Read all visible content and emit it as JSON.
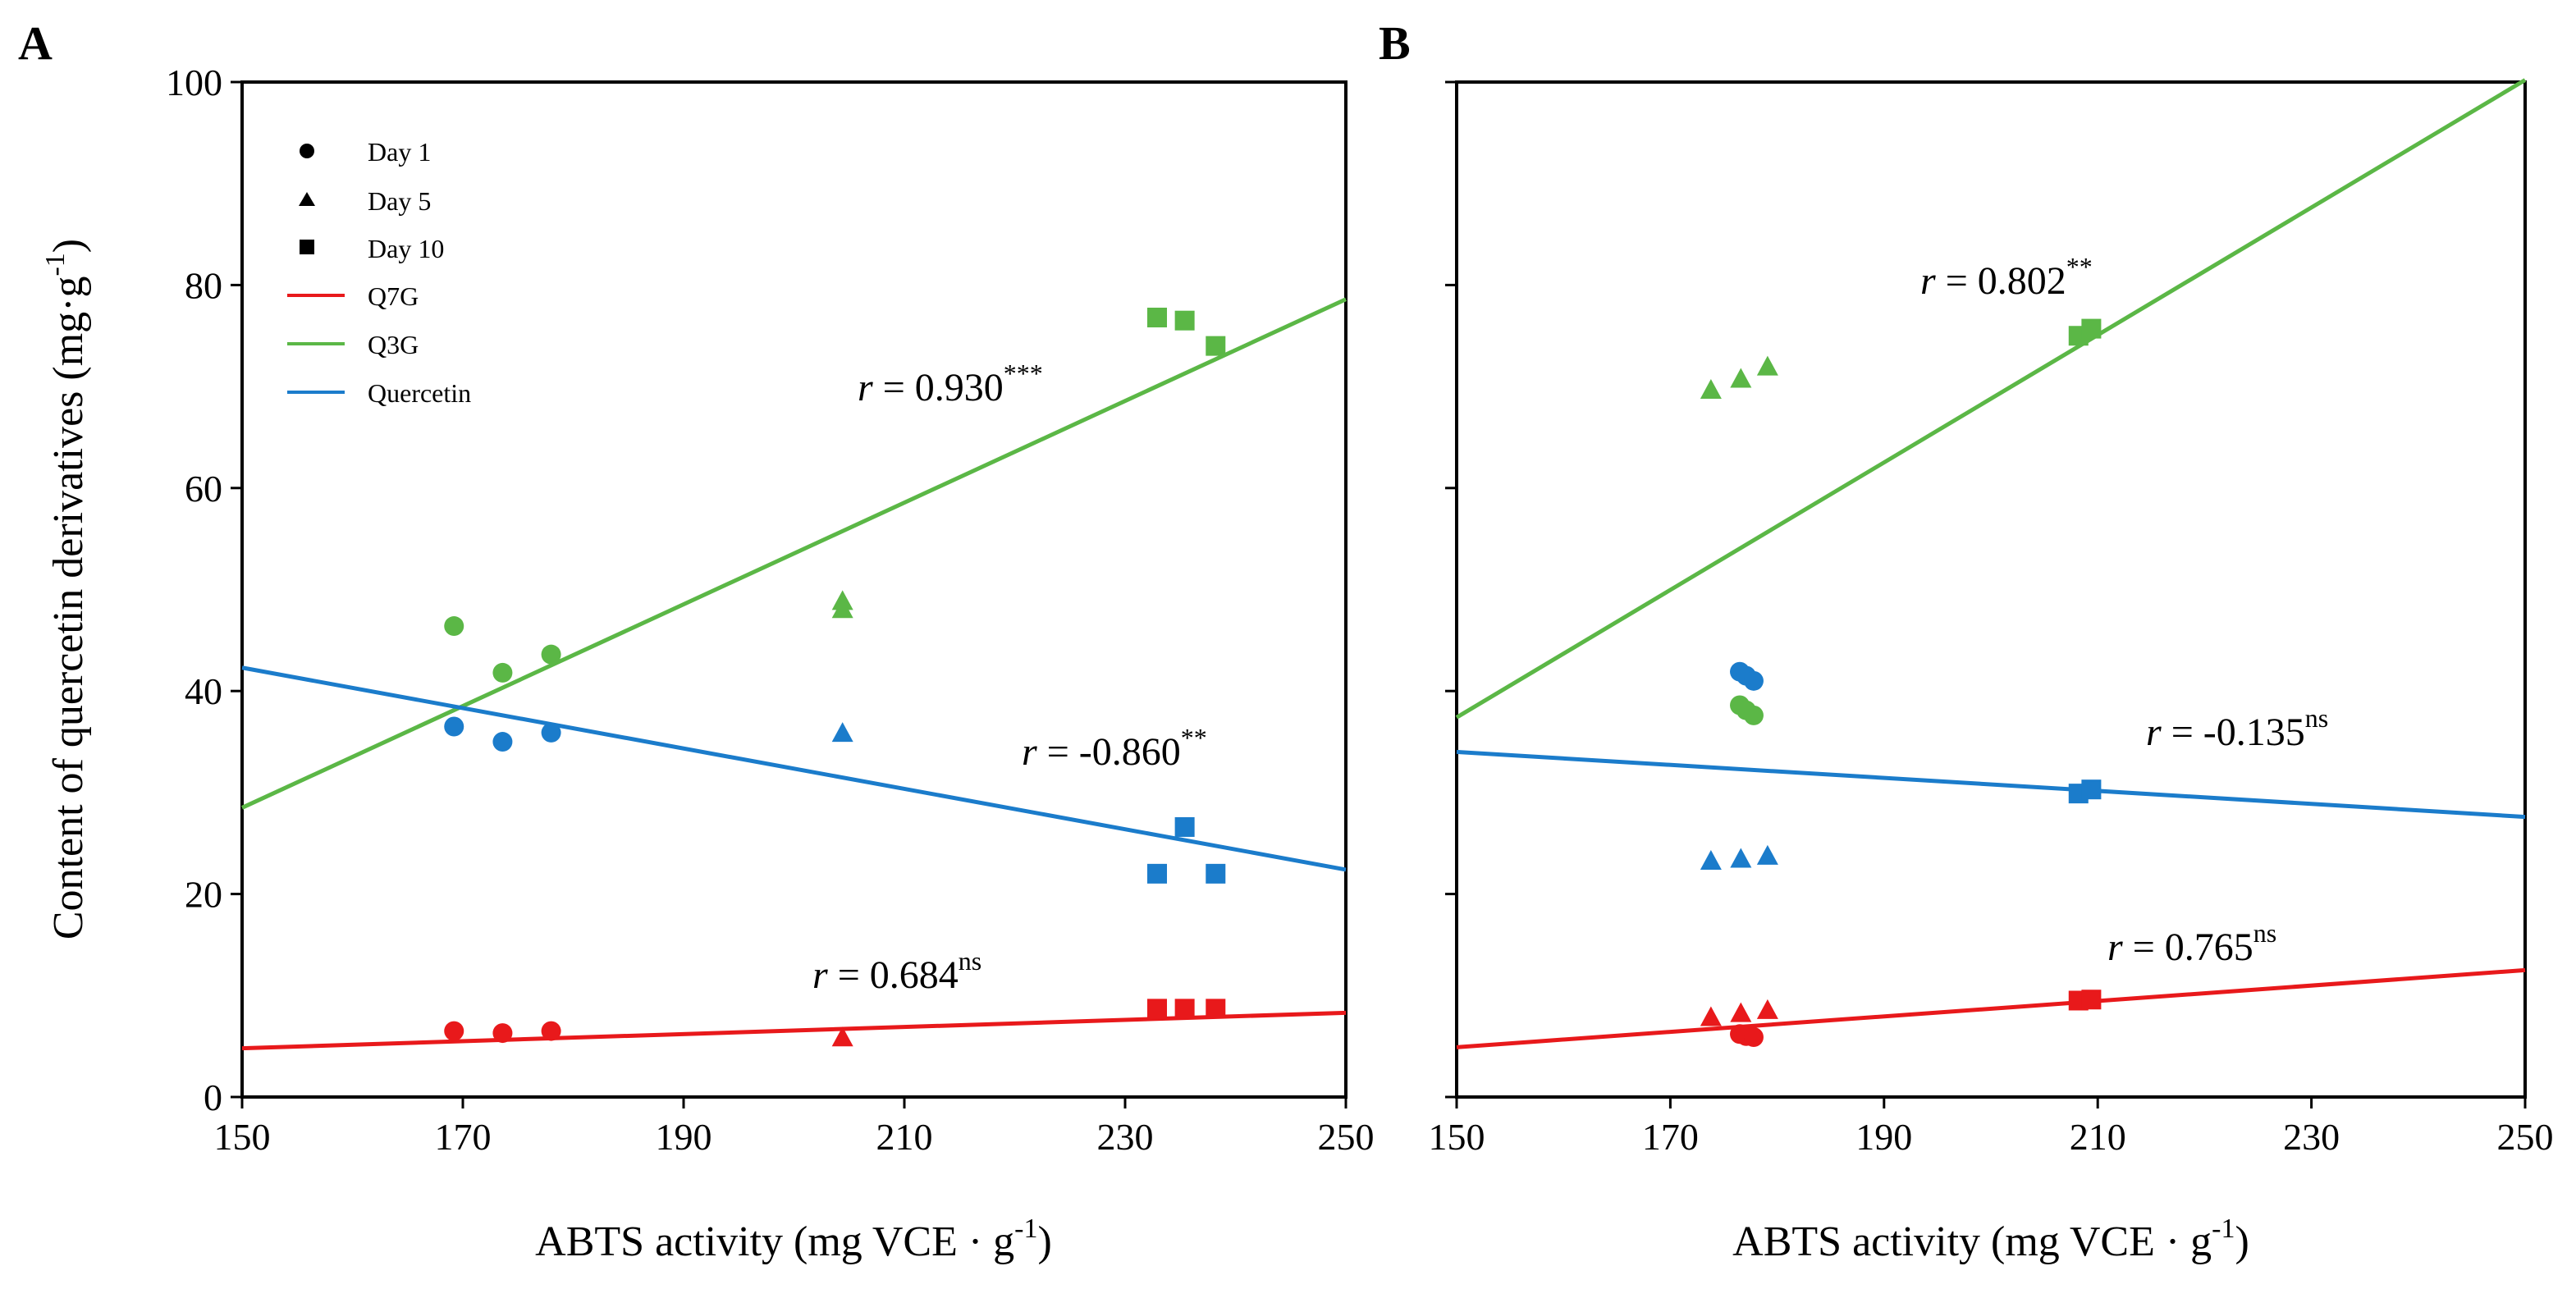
{
  "chart_data": {
    "type": "scatter",
    "ylabel_main": "Content of quercetin derivatives (mg·g",
    "ylabel_sup": "-1",
    "ylabel_close": ")",
    "xlabel_main": "ABTS activity (mg VCE · g",
    "xlabel_sup": "-1",
    "xlabel_close": ")",
    "xlim": [
      150,
      250
    ],
    "ylim": [
      0,
      100
    ],
    "xticks": [
      "150",
      "170",
      "190",
      "210",
      "230",
      "250"
    ],
    "yticks": [
      "0",
      "20",
      "40",
      "60",
      "80",
      "100"
    ],
    "legend": {
      "markers": [
        {
          "shape": "circle",
          "label": "Day 1"
        },
        {
          "shape": "triangle",
          "label": "Day 5"
        },
        {
          "shape": "square",
          "label": "Day 10"
        }
      ],
      "lines": [
        {
          "color": "#e8191b",
          "label": "Q7G"
        },
        {
          "color": "#5bb746",
          "label": "Q3G"
        },
        {
          "color": "#1b7ccb",
          "label": "Quercetin"
        }
      ]
    },
    "panels": [
      {
        "label": "A",
        "series": [
          {
            "name": "Q7G",
            "color": "#e8191b",
            "fit": {
              "y_at_150": 4.8,
              "y_at_250": 8.3
            },
            "r_prefix": "r",
            "r_value": " = 0.684",
            "r_sig": "ns",
            "points": [
              {
                "shape": "circle",
                "x": 169.2,
                "y": 6.5
              },
              {
                "shape": "circle",
                "x": 173.6,
                "y": 6.3
              },
              {
                "shape": "circle",
                "x": 178.0,
                "y": 6.5
              },
              {
                "shape": "triangle",
                "x": 204.4,
                "y": 5.8
              },
              {
                "shape": "square",
                "x": 232.9,
                "y": 8.7
              },
              {
                "shape": "square",
                "x": 235.4,
                "y": 8.7
              },
              {
                "shape": "square",
                "x": 238.2,
                "y": 8.7
              }
            ]
          },
          {
            "name": "Q3G",
            "color": "#5bb746",
            "fit": {
              "y_at_150": 28.5,
              "y_at_250": 78.6
            },
            "r_prefix": "r",
            "r_value": " = 0.930",
            "r_sig": "***",
            "points": [
              {
                "shape": "circle",
                "x": 169.2,
                "y": 46.4
              },
              {
                "shape": "circle",
                "x": 173.6,
                "y": 41.8
              },
              {
                "shape": "circle",
                "x": 178.0,
                "y": 43.6
              },
              {
                "shape": "triangle",
                "x": 204.4,
                "y": 48.8
              },
              {
                "shape": "triangle",
                "x": 204.4,
                "y": 48.0
              },
              {
                "shape": "square",
                "x": 232.9,
                "y": 76.8
              },
              {
                "shape": "square",
                "x": 235.4,
                "y": 76.5
              },
              {
                "shape": "square",
                "x": 238.2,
                "y": 74.0
              }
            ]
          },
          {
            "name": "Quercetin",
            "color": "#1b7ccb",
            "fit": {
              "y_at_150": 42.3,
              "y_at_250": 22.4
            },
            "r_prefix": "r",
            "r_value": " = -0.860",
            "r_sig": "**",
            "points": [
              {
                "shape": "circle",
                "x": 169.2,
                "y": 36.5
              },
              {
                "shape": "circle",
                "x": 173.6,
                "y": 35.0
              },
              {
                "shape": "circle",
                "x": 178.0,
                "y": 35.9
              },
              {
                "shape": "triangle",
                "x": 204.4,
                "y": 35.8
              },
              {
                "shape": "square",
                "x": 232.9,
                "y": 22.0
              },
              {
                "shape": "square",
                "x": 235.4,
                "y": 26.6
              },
              {
                "shape": "square",
                "x": 238.2,
                "y": 22.0
              }
            ]
          }
        ]
      },
      {
        "label": "B",
        "series": [
          {
            "name": "Q7G",
            "color": "#e8191b",
            "fit": {
              "y_at_150": 4.9,
              "y_at_250": 12.5
            },
            "r_prefix": "r",
            "r_value": " = 0.765",
            "r_sig": "ns",
            "points": [
              {
                "shape": "circle",
                "x": 176.5,
                "y": 6.2
              },
              {
                "shape": "circle",
                "x": 177.1,
                "y": 6.0
              },
              {
                "shape": "circle",
                "x": 177.8,
                "y": 5.9
              },
              {
                "shape": "triangle",
                "x": 173.8,
                "y": 7.8
              },
              {
                "shape": "triangle",
                "x": 176.6,
                "y": 8.2
              },
              {
                "shape": "triangle",
                "x": 179.1,
                "y": 8.5
              },
              {
                "shape": "square",
                "x": 208.2,
                "y": 9.5
              },
              {
                "shape": "square",
                "x": 209.4,
                "y": 9.6
              }
            ]
          },
          {
            "name": "Q3G",
            "color": "#5bb746",
            "fit": {
              "y_at_150": 37.4,
              "y_at_250": 100.2
            },
            "r_prefix": "r",
            "r_value": " = 0.802",
            "r_sig": "**",
            "points": [
              {
                "shape": "circle",
                "x": 176.5,
                "y": 38.6
              },
              {
                "shape": "circle",
                "x": 177.1,
                "y": 38.1
              },
              {
                "shape": "circle",
                "x": 177.8,
                "y": 37.6
              },
              {
                "shape": "triangle",
                "x": 173.8,
                "y": 69.6
              },
              {
                "shape": "triangle",
                "x": 176.6,
                "y": 70.7
              },
              {
                "shape": "triangle",
                "x": 179.1,
                "y": 71.9
              },
              {
                "shape": "square",
                "x": 208.2,
                "y": 75.0
              },
              {
                "shape": "square",
                "x": 209.4,
                "y": 75.7
              }
            ]
          },
          {
            "name": "Quercetin",
            "color": "#1b7ccb",
            "fit": {
              "y_at_150": 34.0,
              "y_at_250": 27.6
            },
            "r_prefix": "r",
            "r_value": " = -0.135",
            "r_sig": "ns",
            "points": [
              {
                "shape": "circle",
                "x": 176.5,
                "y": 41.9
              },
              {
                "shape": "circle",
                "x": 177.1,
                "y": 41.5
              },
              {
                "shape": "circle",
                "x": 177.8,
                "y": 41.0
              },
              {
                "shape": "triangle",
                "x": 173.8,
                "y": 23.2
              },
              {
                "shape": "triangle",
                "x": 176.6,
                "y": 23.4
              },
              {
                "shape": "triangle",
                "x": 179.1,
                "y": 23.7
              },
              {
                "shape": "square",
                "x": 208.2,
                "y": 29.9
              },
              {
                "shape": "square",
                "x": 209.4,
                "y": 30.3
              }
            ]
          }
        ]
      }
    ]
  }
}
